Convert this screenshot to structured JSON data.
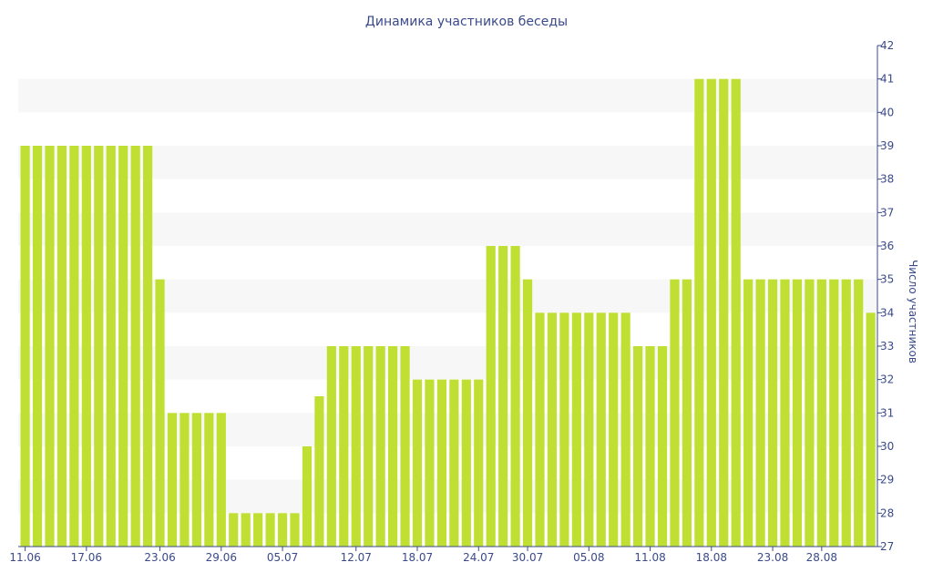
{
  "chart_data": {
    "type": "bar",
    "title": "Динамика участников беседы",
    "xlabel": "",
    "ylabel": "Число участников",
    "ylim": [
      27,
      42
    ],
    "y_ticks": [
      27,
      28,
      29,
      30,
      31,
      32,
      33,
      34,
      35,
      36,
      37,
      38,
      39,
      40,
      41,
      42
    ],
    "x_tick_labels": [
      "11.06",
      "17.06",
      "23.06",
      "29.06",
      "05.07",
      "12.07",
      "18.07",
      "24.07",
      "30.07",
      "05.08",
      "11.08",
      "18.08",
      "23.08",
      "28.08"
    ],
    "x_tick_bar_index": [
      0,
      5,
      11,
      16,
      21,
      27,
      32,
      37,
      41,
      46,
      51,
      56,
      61,
      65
    ],
    "values": [
      39,
      39,
      39,
      39,
      39,
      39,
      39,
      39,
      39,
      39,
      39,
      35,
      31,
      31,
      31,
      31,
      31,
      28,
      28,
      28,
      28,
      28,
      28,
      30,
      31.5,
      33,
      33,
      33,
      33,
      33,
      33,
      33,
      32,
      32,
      32,
      32,
      32,
      32,
      36,
      36,
      36,
      35,
      34,
      34,
      34,
      34,
      34,
      34,
      34,
      34,
      33,
      33,
      33,
      35,
      35,
      41,
      41,
      41,
      41,
      35,
      35,
      35,
      35,
      35,
      35,
      35,
      35,
      35,
      35,
      34
    ],
    "grid": "alternating horizontal bands",
    "colors": {
      "bar": "#bfe032",
      "text": "#3a4a8a",
      "band": "#f7f7f7"
    }
  }
}
